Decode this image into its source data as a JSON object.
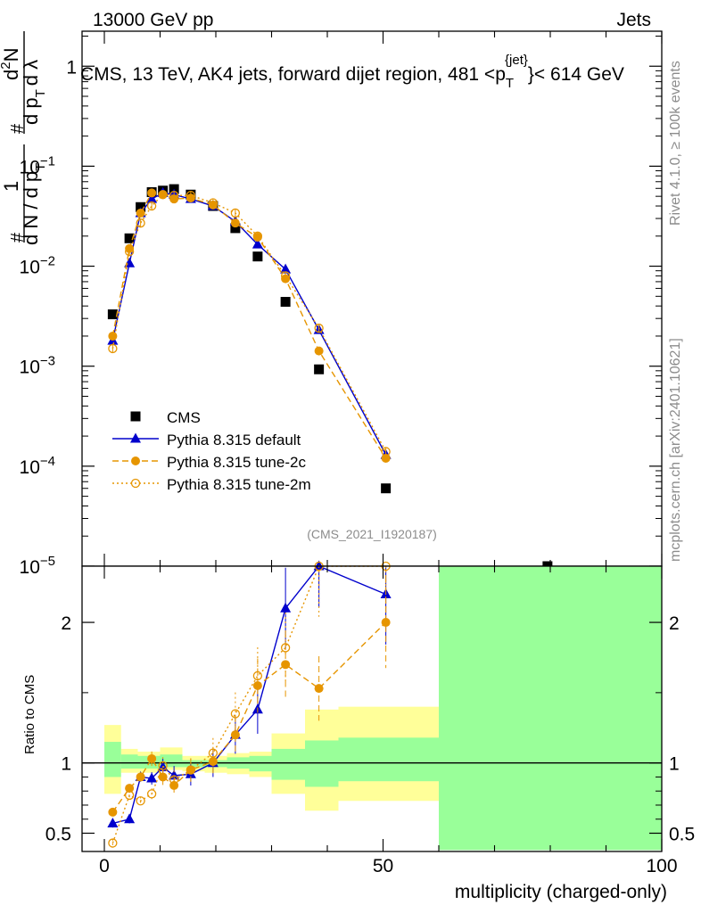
{
  "chart_data": {
    "type": "scatter",
    "header": {
      "left": "13000 GeV pp",
      "right": "Jets"
    },
    "title": "CMS, 13 TeV, AK4 jets, forward dijet region, 481 < p_T^{jet} < 614 GeV",
    "title_parts": {
      "main": "CMS, 13 TeV, AK4 jets, forward dijet region, 481 <p",
      "sub": "T",
      "sup": "{jet}",
      "end": "}< 614 GeV"
    },
    "side_label_top": "Rivet 4.1.0, ≥ 100k events",
    "side_label_bottom": "mcplots.cern.ch [arXiv:2401.10621]",
    "analysis_id": "(CMS_2021_I1920187)",
    "xlabel": "multiplicity (charged-only)",
    "ylabel_main": {
      "a": "1",
      "b": "d N / d p",
      "c": "T",
      "d": "d",
      "e": "N",
      "f": "d p",
      "g": "T",
      "h": "d λ",
      "hash1": "#",
      "hash2": "#",
      "sup2": "2"
    },
    "ylabel_ratio": "Ratio to CMS",
    "xlim": [
      -4,
      100
    ],
    "xticks": [
      0,
      50,
      100
    ],
    "main_ylim_log10": [
      -5,
      0.35
    ],
    "main_yticks": [
      {
        "exp": -5,
        "label": "10",
        "sup": "−5"
      },
      {
        "exp": -4,
        "label": "10",
        "sup": "−4"
      },
      {
        "exp": -3,
        "label": "10",
        "sup": "−3"
      },
      {
        "exp": -2,
        "label": "10",
        "sup": "−2"
      },
      {
        "exp": -1,
        "label": "10",
        "sup": "−1"
      },
      {
        "exp": 0,
        "label": "1",
        "sup": ""
      }
    ],
    "ratio_ylim": [
      0.37,
      2.4
    ],
    "ratio_yticks": [
      0.5,
      1,
      2
    ],
    "ratio_ytick_labels": [
      "0.5",
      "1",
      "2"
    ],
    "legend": [
      {
        "name": "CMS",
        "marker": "square",
        "color": "#000000",
        "line": "none"
      },
      {
        "name": "Pythia 8.315 default",
        "marker": "triangle",
        "color": "#0000cc",
        "line": "solid"
      },
      {
        "name": "Pythia 8.315 tune-2c",
        "marker": "circle",
        "color": "#e69500",
        "line": "dashed"
      },
      {
        "name": "Pythia 8.315 tune-2m",
        "marker": "open-circle",
        "color": "#e69500",
        "line": "dotted"
      }
    ],
    "x": [
      1.5,
      4.5,
      6.5,
      8.5,
      10.5,
      12.5,
      15.5,
      19.5,
      23.5,
      27.5,
      32.5,
      38.5,
      50.5,
      79.5
    ],
    "series": [
      {
        "name": "CMS",
        "values": [
          0.0033,
          0.019,
          0.039,
          0.055,
          0.057,
          0.059,
          0.052,
          0.04,
          0.024,
          0.0125,
          0.0044,
          0.00093,
          6e-05,
          8.5e-06
        ]
      },
      {
        "name": "Pythia 8.315 default",
        "values": [
          0.0018,
          0.0107,
          0.034,
          0.047,
          0.054,
          0.052,
          0.047,
          0.04,
          0.028,
          0.0165,
          0.0093,
          0.0023,
          0.00013
        ]
      },
      {
        "name": "Pythia 8.315 tune-2c",
        "values": [
          0.002,
          0.015,
          0.034,
          0.054,
          0.052,
          0.047,
          0.048,
          0.041,
          0.027,
          0.0195,
          0.0075,
          0.00142,
          0.00012
        ]
      },
      {
        "name": "Pythia 8.315 tune-2m",
        "values": [
          0.0015,
          0.014,
          0.027,
          0.04,
          0.052,
          0.051,
          0.051,
          0.043,
          0.034,
          0.02,
          0.008,
          0.0024,
          0.00014
        ]
      }
    ],
    "ratio_series": [
      {
        "name": "Pythia 8.315 default",
        "values": [
          0.57,
          0.6,
          0.9,
          0.89,
          0.97,
          0.91,
          0.92,
          1.0,
          1.2,
          1.38,
          2.1,
          2.48,
          2.2
        ]
      },
      {
        "name": "Pythia 8.315 tune-2c",
        "values": [
          0.65,
          0.82,
          0.9,
          1.03,
          0.9,
          0.84,
          0.95,
          1.01,
          1.2,
          1.55,
          1.7,
          1.53,
          2.0
        ]
      },
      {
        "name": "Pythia 8.315 tune-2m",
        "values": [
          0.43,
          0.77,
          0.73,
          0.78,
          0.98,
          0.88,
          0.95,
          1.07,
          1.35,
          1.62,
          1.82,
          2.4,
          2.4
        ]
      }
    ],
    "band_edges": [
      0,
      3,
      6,
      10,
      14,
      18,
      22,
      26,
      30,
      36,
      42,
      60,
      100
    ],
    "band_yellow_lo": [
      0.78,
      0.93,
      0.93,
      0.95,
      0.94,
      0.93,
      0.92,
      0.9,
      0.78,
      0.66,
      0.73,
      0.73
    ],
    "band_yellow_hi": [
      1.27,
      1.1,
      1.08,
      1.11,
      1.05,
      1.05,
      1.07,
      1.08,
      1.21,
      1.38,
      1.4,
      1.4
    ],
    "band_green_lo": [
      0.9,
      0.96,
      0.96,
      0.97,
      0.97,
      0.97,
      0.96,
      0.94,
      0.88,
      0.83,
      0.87,
      0.38
    ],
    "band_green_hi": [
      1.15,
      1.06,
      1.05,
      1.06,
      1.02,
      1.02,
      1.04,
      1.05,
      1.1,
      1.16,
      1.18,
      2.4
    ]
  }
}
